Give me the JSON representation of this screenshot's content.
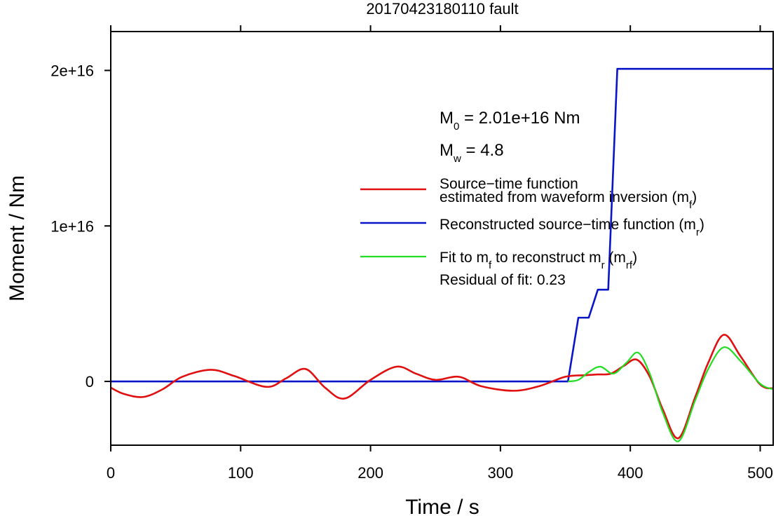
{
  "chart_data": {
    "type": "line",
    "title": "20170423180110 fault",
    "xlabel": "Time / s",
    "ylabel": "Moment / Nm",
    "xlim": [
      0,
      510
    ],
    "ylim": [
      -4100000000000000.0,
      2.25e+16
    ],
    "x_ticks": [
      0,
      100,
      200,
      300,
      400,
      500
    ],
    "x_tick_labels": [
      "0",
      "100",
      "200",
      "300",
      "400",
      "500"
    ],
    "y_ticks": [
      0,
      1e+16,
      2e+16
    ],
    "y_tick_labels": [
      "0",
      "1e+16",
      "2e+16"
    ],
    "grid": false,
    "legend_position": "center-right",
    "annotations": {
      "m0": {
        "symbol": "M",
        "sub": "0",
        "text": " = 2.01e+16 Nm"
      },
      "mw": {
        "symbol": "M",
        "sub": "w",
        "text": " = 4.8"
      },
      "residual": "Residual of fit: 0.23"
    },
    "series": [
      {
        "name": "Source−time function estimated from waveform inversion (m_f)",
        "legend_lines": [
          [
            {
              "t": "Source−time function"
            }
          ],
          [
            {
              "t": "estimated from waveform inversion (m"
            },
            {
              "t": "f",
              "sub": true
            },
            {
              "t": ")"
            }
          ]
        ],
        "color": "#e01010",
        "width": 2.6,
        "smooth": true,
        "x": [
          0,
          10,
          25,
          40,
          55,
          77,
          95,
          120,
          135,
          150,
          165,
          180,
          200,
          220,
          235,
          250,
          268,
          285,
          310,
          330,
          350,
          365,
          375,
          385,
          395,
          405,
          415,
          425,
          437,
          450,
          460,
          472,
          485,
          500,
          510
        ],
        "y": [
          -400000000000000.0,
          -800000000000000.0,
          -1000000000000000.0,
          -500000000000000.0,
          300000000000000.0,
          750000000000000.0,
          350000000000000.0,
          -350000000000000.0,
          200000000000000.0,
          800000000000000.0,
          -400000000000000.0,
          -1100000000000000.0,
          100000000000000.0,
          950000000000000.0,
          500000000000000.0,
          100000000000000.0,
          300000000000000.0,
          -300000000000000.0,
          -600000000000000.0,
          -300000000000000.0,
          300000000000000.0,
          400000000000000.0,
          450000000000000.0,
          500000000000000.0,
          1000000000000000.0,
          1400000000000000.0,
          300000000000000.0,
          -1800000000000000.0,
          -3650000000000000.0,
          -1000000000000000.0,
          1200000000000000.0,
          3000000000000000.0,
          1600000000000000.0,
          -200000000000000.0,
          -450000000000000.0
        ]
      },
      {
        "name": "Reconstructed source−time function (m_r)",
        "legend_lines": [
          [
            {
              "t": "Reconstructed source−time function (m"
            },
            {
              "t": "r",
              "sub": true
            },
            {
              "t": ")"
            }
          ]
        ],
        "color": "#0a14c8",
        "width": 2.6,
        "smooth": false,
        "x": [
          0,
          352,
          360,
          368,
          375,
          383,
          390,
          510
        ],
        "y": [
          0,
          0,
          4100000000000000.0,
          4100000000000000.0,
          5900000000000000.0,
          5900000000000000.0,
          2.01e+16,
          2.01e+16
        ]
      },
      {
        "name": "Fit to m_f to reconstruct m_r (m_rf)",
        "legend_lines": [
          [
            {
              "t": "Fit to m"
            },
            {
              "t": "f",
              "sub": true
            },
            {
              "t": " to reconstruct m"
            },
            {
              "t": "r",
              "sub": true
            },
            {
              "t": " (m"
            },
            {
              "t": "rf",
              "sub": true
            },
            {
              "t": ")"
            }
          ]
        ],
        "color": "#22dd22",
        "width": 2.2,
        "smooth": true,
        "x": [
          352,
          360,
          368,
          377,
          387,
          397,
          406,
          415,
          425,
          437,
          450,
          460,
          472,
          485,
          500,
          510
        ],
        "y": [
          0,
          100000000000000.0,
          600000000000000.0,
          950000000000000.0,
          500000000000000.0,
          1200000000000000.0,
          1850000000000000.0,
          500000000000000.0,
          -2000000000000000.0,
          -3850000000000000.0,
          -1200000000000000.0,
          800000000000000.0,
          2200000000000000.0,
          1300000000000000.0,
          -150000000000000.0,
          -500000000000000.0
        ]
      }
    ]
  }
}
